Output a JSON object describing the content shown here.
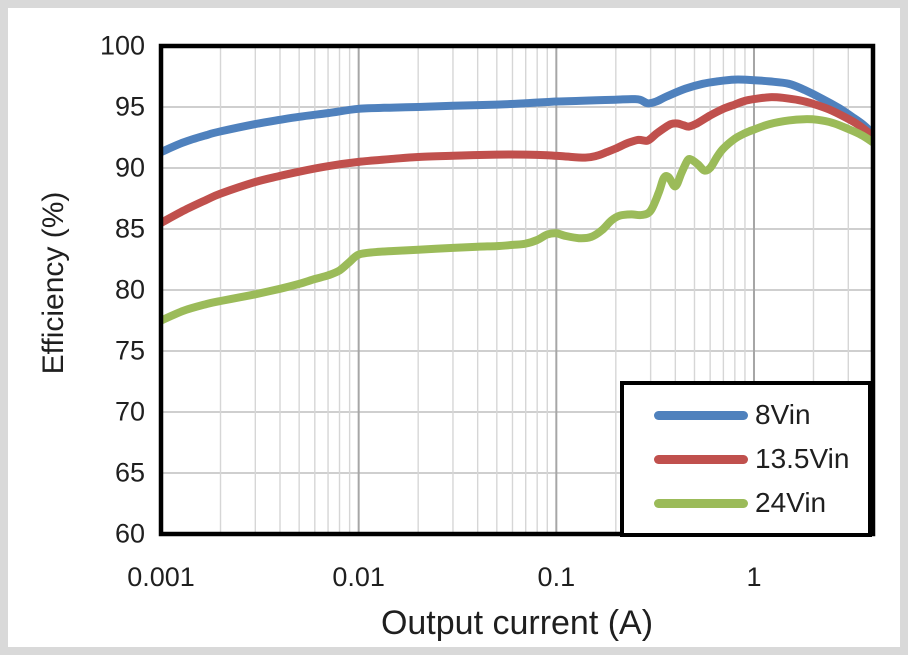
{
  "figure": {
    "background": "#ffffff",
    "frame_color": "#d9d9d9"
  },
  "chart_data": {
    "type": "line",
    "title": "",
    "xlabel": "Output current (A)",
    "ylabel": "Efficiency (%)",
    "x_scale": "log",
    "xlim": [
      0.001,
      4
    ],
    "ylim": [
      60,
      100
    ],
    "grid": {
      "horizontal_color": "#bfbfbf",
      "vertical_minor_color": "#d6d6d6",
      "vertical_major_color": "#a6a6a6",
      "border_color": "#000000"
    },
    "legend_position": "bottom-right",
    "y_ticks": [
      {
        "v": 60,
        "label": "60"
      },
      {
        "v": 65,
        "label": "65"
      },
      {
        "v": 70,
        "label": "70"
      },
      {
        "v": 75,
        "label": "75"
      },
      {
        "v": 80,
        "label": "80"
      },
      {
        "v": 85,
        "label": "85"
      },
      {
        "v": 90,
        "label": "90"
      },
      {
        "v": 95,
        "label": "95"
      },
      {
        "v": 100,
        "label": "100"
      }
    ],
    "x_ticks": [
      {
        "v": 0.001,
        "label": "0.001"
      },
      {
        "v": 0.01,
        "label": "0.01"
      },
      {
        "v": 0.1,
        "label": "0.1"
      },
      {
        "v": 1,
        "label": "1"
      }
    ],
    "series": [
      {
        "name": "8Vin",
        "color": "#4F81BD",
        "points": [
          [
            0.001,
            91.3
          ],
          [
            0.0013,
            92.1
          ],
          [
            0.0017,
            92.7
          ],
          [
            0.002,
            93.0
          ],
          [
            0.003,
            93.6
          ],
          [
            0.004,
            93.95
          ],
          [
            0.005,
            94.2
          ],
          [
            0.007,
            94.5
          ],
          [
            0.01,
            94.85
          ],
          [
            0.015,
            94.95
          ],
          [
            0.02,
            95.0
          ],
          [
            0.03,
            95.1
          ],
          [
            0.05,
            95.2
          ],
          [
            0.07,
            95.3
          ],
          [
            0.1,
            95.45
          ],
          [
            0.13,
            95.5
          ],
          [
            0.16,
            95.55
          ],
          [
            0.2,
            95.6
          ],
          [
            0.24,
            95.65
          ],
          [
            0.265,
            95.6
          ],
          [
            0.29,
            95.3
          ],
          [
            0.32,
            95.45
          ],
          [
            0.36,
            95.85
          ],
          [
            0.45,
            96.5
          ],
          [
            0.55,
            96.9
          ],
          [
            0.65,
            97.1
          ],
          [
            0.8,
            97.25
          ],
          [
            1.0,
            97.2
          ],
          [
            1.2,
            97.1
          ],
          [
            1.5,
            96.9
          ],
          [
            1.8,
            96.4
          ],
          [
            2.2,
            95.7
          ],
          [
            2.7,
            94.9
          ],
          [
            3.2,
            94.1
          ],
          [
            3.6,
            93.5
          ],
          [
            4.0,
            92.8
          ]
        ]
      },
      {
        "name": "13.5Vin",
        "color": "#C0504D",
        "points": [
          [
            0.001,
            85.5
          ],
          [
            0.0013,
            86.5
          ],
          [
            0.0017,
            87.4
          ],
          [
            0.002,
            87.9
          ],
          [
            0.003,
            88.85
          ],
          [
            0.004,
            89.35
          ],
          [
            0.005,
            89.7
          ],
          [
            0.007,
            90.15
          ],
          [
            0.01,
            90.5
          ],
          [
            0.015,
            90.75
          ],
          [
            0.02,
            90.9
          ],
          [
            0.03,
            91.0
          ],
          [
            0.05,
            91.1
          ],
          [
            0.07,
            91.1
          ],
          [
            0.09,
            91.05
          ],
          [
            0.11,
            90.95
          ],
          [
            0.14,
            90.85
          ],
          [
            0.16,
            91.0
          ],
          [
            0.18,
            91.3
          ],
          [
            0.2,
            91.6
          ],
          [
            0.23,
            92.05
          ],
          [
            0.26,
            92.3
          ],
          [
            0.29,
            92.25
          ],
          [
            0.32,
            92.8
          ],
          [
            0.35,
            93.25
          ],
          [
            0.38,
            93.6
          ],
          [
            0.41,
            93.65
          ],
          [
            0.44,
            93.5
          ],
          [
            0.47,
            93.4
          ],
          [
            0.52,
            93.7
          ],
          [
            0.6,
            94.3
          ],
          [
            0.7,
            94.85
          ],
          [
            0.8,
            95.2
          ],
          [
            0.9,
            95.5
          ],
          [
            1.0,
            95.65
          ],
          [
            1.2,
            95.8
          ],
          [
            1.4,
            95.75
          ],
          [
            1.7,
            95.55
          ],
          [
            2.0,
            95.25
          ],
          [
            2.4,
            94.8
          ],
          [
            2.9,
            94.15
          ],
          [
            3.4,
            93.5
          ],
          [
            4.0,
            92.6
          ]
        ]
      },
      {
        "name": "24Vin",
        "color": "#9BBB59",
        "points": [
          [
            0.001,
            77.5
          ],
          [
            0.0013,
            78.3
          ],
          [
            0.0017,
            78.85
          ],
          [
            0.002,
            79.1
          ],
          [
            0.0025,
            79.4
          ],
          [
            0.003,
            79.65
          ],
          [
            0.004,
            80.1
          ],
          [
            0.005,
            80.5
          ],
          [
            0.006,
            80.9
          ],
          [
            0.007,
            81.2
          ],
          [
            0.008,
            81.6
          ],
          [
            0.009,
            82.3
          ],
          [
            0.01,
            82.9
          ],
          [
            0.012,
            83.1
          ],
          [
            0.015,
            83.2
          ],
          [
            0.02,
            83.3
          ],
          [
            0.03,
            83.45
          ],
          [
            0.04,
            83.55
          ],
          [
            0.05,
            83.6
          ],
          [
            0.06,
            83.7
          ],
          [
            0.07,
            83.8
          ],
          [
            0.08,
            84.1
          ],
          [
            0.09,
            84.55
          ],
          [
            0.1,
            84.65
          ],
          [
            0.11,
            84.45
          ],
          [
            0.13,
            84.25
          ],
          [
            0.15,
            84.35
          ],
          [
            0.17,
            84.9
          ],
          [
            0.19,
            85.7
          ],
          [
            0.21,
            86.1
          ],
          [
            0.24,
            86.2
          ],
          [
            0.27,
            86.15
          ],
          [
            0.3,
            86.5
          ],
          [
            0.33,
            88.0
          ],
          [
            0.35,
            89.2
          ],
          [
            0.37,
            89.25
          ],
          [
            0.4,
            88.5
          ],
          [
            0.43,
            89.6
          ],
          [
            0.46,
            90.6
          ],
          [
            0.48,
            90.7
          ],
          [
            0.52,
            90.3
          ],
          [
            0.56,
            89.8
          ],
          [
            0.6,
            90.0
          ],
          [
            0.65,
            90.9
          ],
          [
            0.7,
            91.6
          ],
          [
            0.8,
            92.4
          ],
          [
            0.9,
            92.85
          ],
          [
            1.0,
            93.15
          ],
          [
            1.2,
            93.6
          ],
          [
            1.5,
            93.9
          ],
          [
            1.8,
            94.0
          ],
          [
            2.1,
            93.95
          ],
          [
            2.5,
            93.7
          ],
          [
            3.0,
            93.2
          ],
          [
            3.5,
            92.7
          ],
          [
            4.0,
            92.1
          ]
        ]
      }
    ]
  }
}
